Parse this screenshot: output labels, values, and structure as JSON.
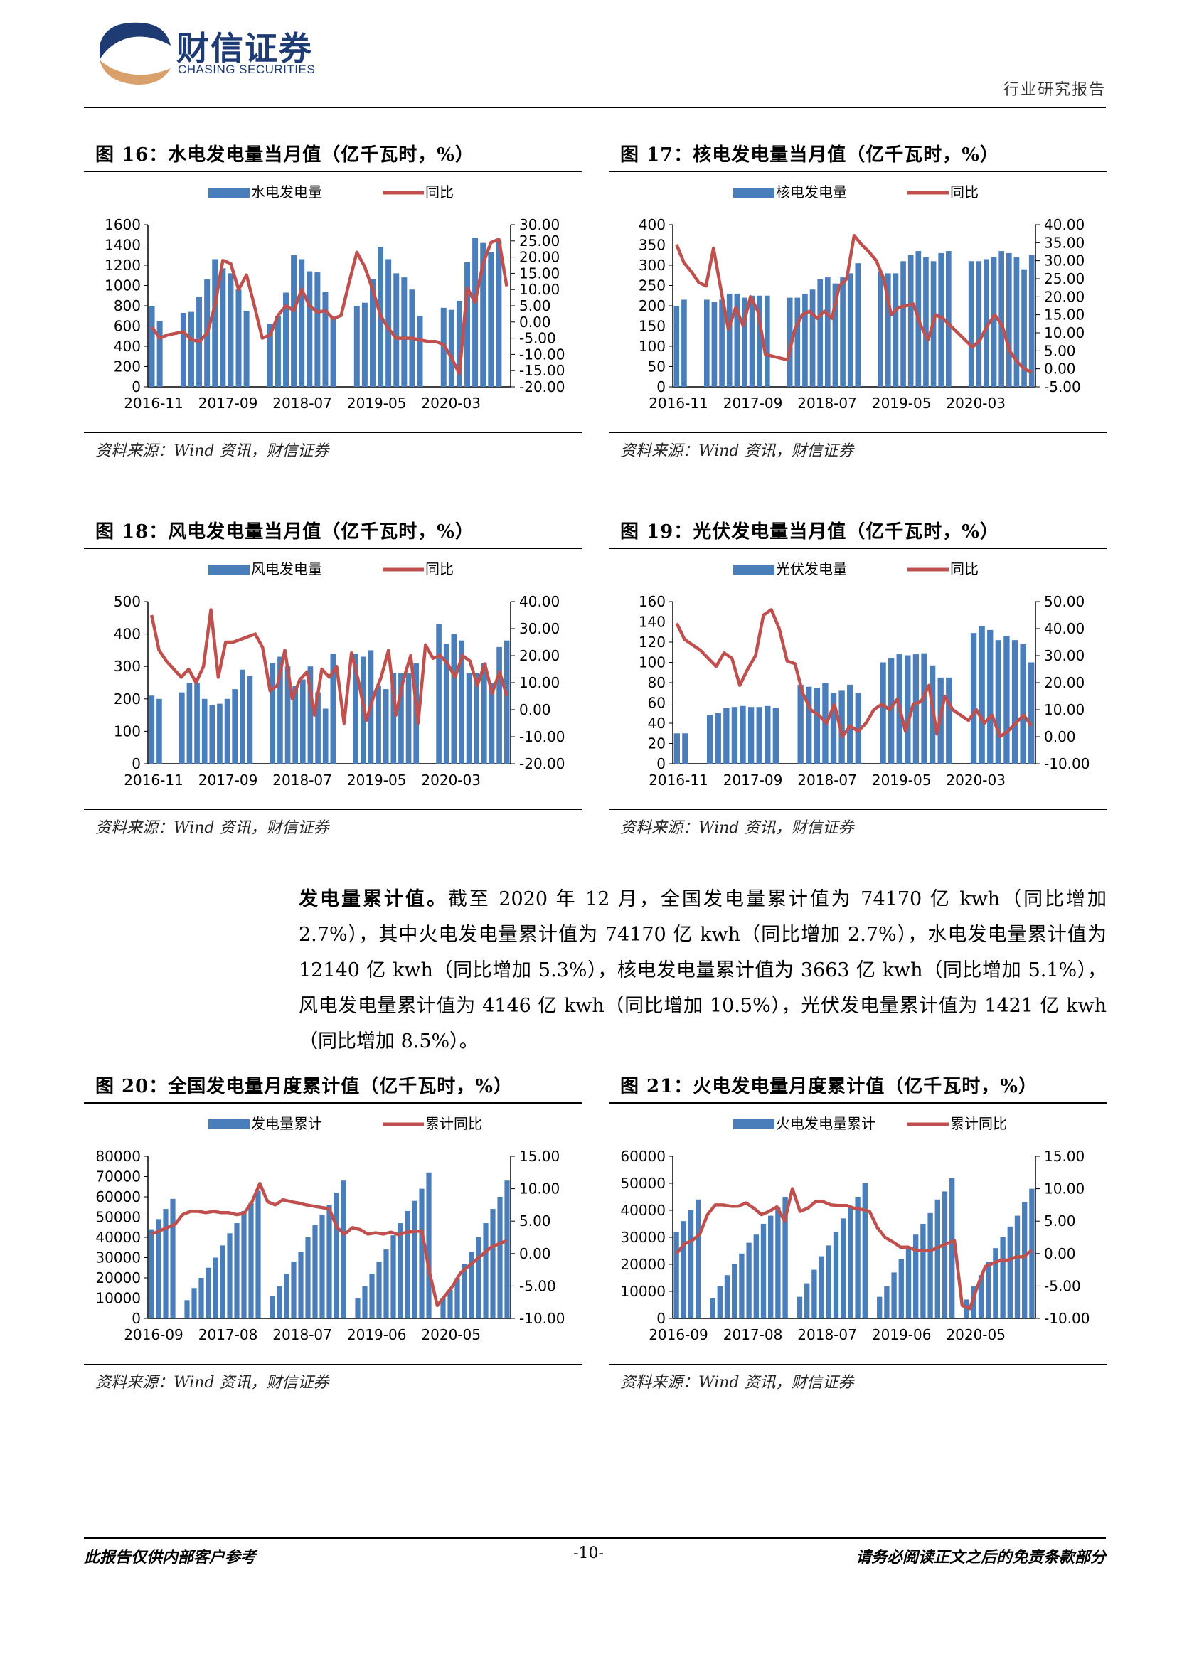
{
  "header": {
    "logo_cn": "财信证券",
    "logo_en": "CHASING SECURITIES",
    "report_type": "行业研究报告"
  },
  "figures": [
    {
      "title": "图 16：水电发电量当月值（亿千瓦时，%）",
      "source": "资料来源：Wind 资讯，财信证券"
    },
    {
      "title": "图 17：核电发电量当月值（亿千瓦时，%）",
      "source": "资料来源：Wind 资讯，财信证券"
    },
    {
      "title": "图 18：风电发电量当月值（亿千瓦时，%）",
      "source": "资料来源：Wind 资讯，财信证券"
    },
    {
      "title": "图 19：光伏发电量当月值（亿千瓦时，%）",
      "source": "资料来源：Wind 资讯，财信证券"
    },
    {
      "title": "图 20：全国发电量月度累计值（亿千瓦时，%）",
      "source": "资料来源：Wind 资讯，财信证券"
    },
    {
      "title": "图 21：火电发电量月度累计值（亿千瓦时，%）",
      "source": "资料来源：Wind 资讯，财信证券"
    }
  ],
  "paragraph": {
    "lead": "发电量累计值。",
    "text": "截至 2020 年 12 月，全国发电量累计值为 74170 亿 kwh（同比增加 2.7%），其中火电发电量累计值为 74170 亿 kwh（同比增加 2.7%），水电发电量累计值为 12140 亿 kwh（同比增加 5.3%），核电发电量累计值为 3663 亿 kwh（同比增加 5.1%），风电发电量累计值为 4146 亿 kwh（同比增加 10.5%），光伏发电量累计值为 1421 亿 kwh（同比增加 8.5%）。"
  },
  "footer": {
    "left": "此报告仅供内部客户参考",
    "page": "-10-",
    "right": "请务必阅读正文之后的免责条款部分"
  },
  "chart_data": [
    {
      "type": "bar",
      "bar_series": "水电发电量",
      "line_series": "同比",
      "bar_color": "#4a7ebb",
      "line_color": "#c0504d",
      "x_ticks": [
        "2016-11",
        "2017-09",
        "2018-07",
        "2019-05",
        "2020-03"
      ],
      "y_left": [
        0,
        1600
      ],
      "y_left_ticks": [
        "0",
        "200",
        "400",
        "600",
        "800",
        "1000",
        "1200",
        "1400",
        "1600"
      ],
      "y_right": [
        -20,
        30
      ],
      "y_right_ticks": [
        "-20.00",
        "-15.00",
        "-10.00",
        "-5.00",
        "0.00",
        "5.00",
        "10.00",
        "15.00",
        "20.00",
        "25.00",
        "30.00"
      ],
      "bars": [
        800,
        650,
        null,
        null,
        730,
        740,
        890,
        1060,
        1260,
        1170,
        1120,
        960,
        750,
        null,
        null,
        620,
        700,
        930,
        1300,
        1260,
        1140,
        1130,
        940,
        700,
        null,
        null,
        800,
        830,
        1060,
        1380,
        1260,
        1120,
        1080,
        960,
        700,
        null,
        null,
        780,
        760,
        850,
        1230,
        1470,
        1420,
        1330,
        1440,
        null
      ],
      "line": [
        -1.5,
        -5,
        -4,
        -3.5,
        -3,
        -5.5,
        -6,
        -3.5,
        5,
        19,
        18,
        10,
        14.5,
        5,
        -5,
        -4,
        2,
        5,
        3.5,
        10,
        5,
        3,
        3.5,
        1,
        2,
        12,
        21.5,
        17,
        10,
        2,
        -2,
        -5,
        -5,
        -5,
        -5.5,
        -6,
        -6,
        -7,
        -11,
        -16,
        10.5,
        6,
        18,
        24.5,
        25.5,
        11
      ]
    },
    {
      "type": "bar",
      "bar_series": "核电发电量",
      "line_series": "同比",
      "bar_color": "#4a7ebb",
      "line_color": "#c0504d",
      "x_ticks": [
        "2016-11",
        "2017-09",
        "2018-07",
        "2019-05",
        "2020-03"
      ],
      "y_left": [
        0,
        400
      ],
      "y_left_ticks": [
        "0",
        "50",
        "100",
        "150",
        "200",
        "250",
        "300",
        "350",
        "400"
      ],
      "y_right": [
        -5,
        40
      ],
      "y_right_ticks": [
        "-5.00",
        "0.00",
        "5.00",
        "10.00",
        "15.00",
        "20.00",
        "25.00",
        "30.00",
        "35.00",
        "40.00"
      ],
      "bars": [
        200,
        215,
        null,
        null,
        215,
        210,
        215,
        230,
        230,
        220,
        225,
        225,
        225,
        null,
        null,
        220,
        220,
        230,
        240,
        265,
        270,
        255,
        270,
        280,
        305,
        null,
        null,
        285,
        280,
        280,
        310,
        325,
        335,
        320,
        310,
        330,
        335,
        null,
        null,
        310,
        310,
        315,
        320,
        335,
        330,
        320,
        290,
        325
      ],
      "line": [
        34.5,
        29.5,
        27,
        24,
        23,
        33.5,
        22,
        11,
        17,
        12,
        20,
        16,
        4,
        3.5,
        3,
        2.5,
        11,
        15,
        16,
        14,
        16,
        14,
        23,
        25,
        37,
        34.5,
        32.5,
        30,
        25,
        15,
        17,
        17.5,
        18,
        12,
        8,
        15,
        14,
        12,
        10,
        8,
        6,
        8,
        12,
        15,
        12,
        5,
        2,
        0,
        -1
      ]
    },
    {
      "type": "bar",
      "bar_series": "风电发电量",
      "line_series": "同比",
      "bar_color": "#4a7ebb",
      "line_color": "#c0504d",
      "x_ticks": [
        "2016-11",
        "2017-09",
        "2018-07",
        "2019-05",
        "2020-03"
      ],
      "y_left": [
        0,
        500
      ],
      "y_left_ticks": [
        "0",
        "100",
        "200",
        "300",
        "400",
        "500"
      ],
      "y_right": [
        -20,
        40
      ],
      "y_right_ticks": [
        "-20.00",
        "-10.00",
        "0.00",
        "10.00",
        "20.00",
        "30.00",
        "40.00"
      ],
      "bars": [
        210,
        200,
        null,
        null,
        220,
        250,
        250,
        200,
        180,
        185,
        200,
        230,
        290,
        270,
        null,
        null,
        310,
        330,
        300,
        240,
        260,
        300,
        220,
        170,
        340,
        null,
        null,
        340,
        330,
        350,
        240,
        230,
        280,
        280,
        280,
        310,
        null,
        null,
        430,
        370,
        400,
        380,
        280,
        280,
        310,
        250,
        360,
        380
      ],
      "line": [
        35,
        22,
        18,
        15,
        12,
        15,
        10,
        16,
        37,
        12,
        25,
        25,
        26,
        27,
        28,
        23,
        7,
        9,
        22,
        4,
        11,
        14,
        -2,
        15,
        12,
        16,
        -5,
        21,
        10,
        -4,
        5,
        12,
        22,
        -2,
        11,
        20,
        -5,
        24,
        19,
        20,
        17,
        12,
        20,
        18,
        9,
        17,
        6,
        14,
        5
      ]
    },
    {
      "type": "bar",
      "bar_series": "光伏发电量",
      "line_series": "同比",
      "bar_color": "#4a7ebb",
      "line_color": "#c0504d",
      "x_ticks": [
        "2016-11",
        "2017-09",
        "2018-07",
        "2019-05",
        "2020-03"
      ],
      "y_left": [
        0,
        160
      ],
      "y_left_ticks": [
        "0",
        "20",
        "40",
        "60",
        "80",
        "100",
        "120",
        "140",
        "160"
      ],
      "y_right": [
        -10,
        50
      ],
      "y_right_ticks": [
        "-10.00",
        "0.00",
        "10.00",
        "20.00",
        "30.00",
        "40.00",
        "50.00"
      ],
      "bars": [
        30,
        30,
        null,
        null,
        48,
        50,
        55,
        56,
        57,
        56,
        56,
        57,
        55,
        null,
        null,
        78,
        76,
        75,
        80,
        70,
        72,
        78,
        70,
        null,
        null,
        100,
        104,
        108,
        107,
        108,
        109,
        97,
        85,
        85,
        null,
        null,
        129,
        136,
        132,
        122,
        126,
        122,
        118,
        100
      ],
      "line": [
        42,
        36,
        34,
        32,
        29,
        26,
        31,
        29,
        19,
        25,
        30,
        45,
        47,
        40,
        28,
        27,
        16,
        10,
        8,
        5,
        12,
        0,
        4,
        2,
        5,
        10,
        12,
        10,
        14,
        2,
        12,
        13,
        19,
        1,
        15,
        10,
        8,
        6,
        10,
        5,
        8,
        0,
        2,
        5,
        8,
        4
      ]
    },
    {
      "type": "bar",
      "bar_series": "发电量累计",
      "line_series": "累计同比",
      "bar_color": "#4a7ebb",
      "line_color": "#c0504d",
      "x_ticks": [
        "2016-09",
        "2017-08",
        "2018-07",
        "2019-06",
        "2020-05"
      ],
      "y_left": [
        0,
        80000
      ],
      "y_left_ticks": [
        "0",
        "10000",
        "20000",
        "30000",
        "40000",
        "50000",
        "60000",
        "70000",
        "80000"
      ],
      "y_right": [
        -10,
        15
      ],
      "y_right_ticks": [
        "-10.00",
        "-5.00",
        "0.00",
        "5.00",
        "10.00",
        "15.00"
      ],
      "bars": [
        44000,
        49000,
        54000,
        59000,
        null,
        9000,
        15000,
        20000,
        25000,
        30000,
        36000,
        42000,
        47000,
        53000,
        57000,
        63000,
        null,
        11000,
        16000,
        22000,
        28000,
        33000,
        40000,
        46000,
        51000,
        56000,
        62000,
        68000,
        null,
        10000,
        16000,
        22000,
        28000,
        34000,
        41000,
        47000,
        53000,
        58000,
        64000,
        72000,
        null,
        10000,
        14000,
        20000,
        27000,
        33000,
        40000,
        47000,
        54000,
        60000,
        68000
      ],
      "line": [
        3,
        3.5,
        4,
        4.5,
        6,
        6.5,
        6.5,
        6.3,
        6.5,
        6.3,
        6.3,
        6,
        6.2,
        8,
        10.8,
        8,
        7.5,
        8.3,
        8,
        7.8,
        7.5,
        7.3,
        7.1,
        6.9,
        4,
        3,
        4,
        3.7,
        3,
        3.2,
        3,
        3.3,
        2.9,
        3.3,
        3.4,
        3.5,
        -3,
        -8,
        -6.5,
        -5,
        -3,
        -2,
        -1,
        0,
        1,
        1.5,
        2
      ]
    },
    {
      "type": "bar",
      "bar_series": "火电发电量累计",
      "line_series": "累计同比",
      "bar_color": "#4a7ebb",
      "line_color": "#c0504d",
      "x_ticks": [
        "2016-09",
        "2017-08",
        "2018-07",
        "2019-06",
        "2020-05"
      ],
      "y_left": [
        0,
        60000
      ],
      "y_left_ticks": [
        "0",
        "10000",
        "20000",
        "30000",
        "40000",
        "50000",
        "60000"
      ],
      "y_right": [
        -10,
        15
      ],
      "y_right_ticks": [
        "-10.00",
        "-5.00",
        "0.00",
        "5.00",
        "10.00",
        "15.00"
      ],
      "bars": [
        32000,
        36000,
        40000,
        44000,
        null,
        7500,
        12000,
        16000,
        20000,
        24000,
        28000,
        31000,
        35000,
        38000,
        41000,
        45000,
        null,
        8000,
        13000,
        18000,
        23000,
        27000,
        32000,
        37000,
        41000,
        45000,
        50000,
        null,
        8000,
        12000,
        17000,
        22000,
        26000,
        31000,
        35000,
        39000,
        44000,
        47000,
        52000,
        null,
        7000,
        12000,
        16000,
        21000,
        26000,
        30000,
        34000,
        38000,
        43000,
        48000
      ],
      "line": [
        0,
        1.5,
        2,
        3,
        6,
        7.5,
        7.5,
        7.3,
        7.3,
        7.8,
        7,
        6,
        6.5,
        7.2,
        5,
        10,
        6.5,
        7,
        8,
        8,
        7.5,
        7.4,
        7.4,
        7,
        6.8,
        6.5,
        4,
        2.5,
        1.8,
        1,
        1,
        0.5,
        0.5,
        0.5,
        1,
        1.5,
        2,
        -8,
        -8.5,
        -5,
        -2,
        -1.5,
        -1,
        -1,
        -0.5,
        -0.5,
        0.5
      ]
    }
  ]
}
